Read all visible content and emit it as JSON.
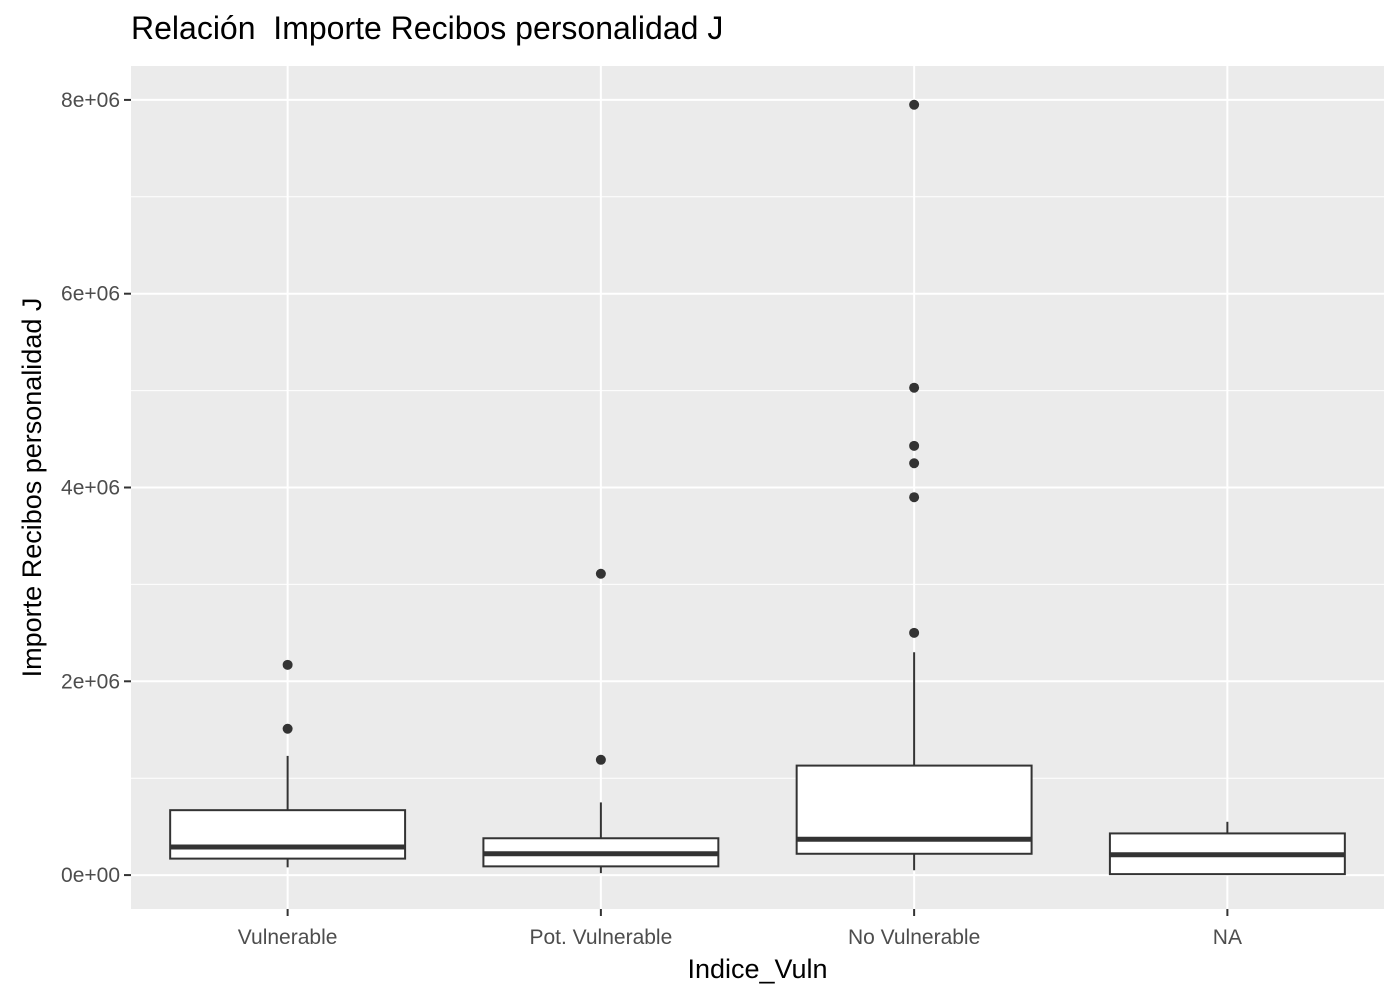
{
  "chart_data": {
    "type": "boxplot",
    "title": "Relación  Importe Recibos personalidad J",
    "xlabel": "Indice_Vuln",
    "ylabel": "Importe Recibos personalidad J",
    "categories": [
      "Vulnerable",
      "Pot. Vulnerable",
      "No Vulnerable",
      "NA"
    ],
    "ylim": [
      -350000,
      8350000
    ],
    "yticks": [
      {
        "value": 0,
        "label": "0e+00"
      },
      {
        "value": 2000000,
        "label": "2e+06"
      },
      {
        "value": 4000000,
        "label": "4e+06"
      },
      {
        "value": 6000000,
        "label": "6e+06"
      },
      {
        "value": 8000000,
        "label": "8e+06"
      }
    ],
    "grid": true,
    "background": "#ebebeb",
    "boxes": [
      {
        "category": "Vulnerable",
        "whisker_low": 80000,
        "q1": 170000,
        "median": 290000,
        "q3": 670000,
        "whisker_high": 1230000,
        "outliers": [
          1510000,
          2170000
        ]
      },
      {
        "category": "Pot. Vulnerable",
        "whisker_low": 20000,
        "q1": 90000,
        "median": 220000,
        "q3": 380000,
        "whisker_high": 750000,
        "outliers": [
          1190000,
          3110000
        ]
      },
      {
        "category": "No Vulnerable",
        "whisker_low": 50000,
        "q1": 220000,
        "median": 370000,
        "q3": 1130000,
        "whisker_high": 2300000,
        "outliers": [
          2500000,
          3900000,
          4250000,
          4430000,
          5030000,
          7950000
        ]
      },
      {
        "category": "NA",
        "whisker_low": 10000,
        "q1": 10000,
        "median": 210000,
        "q3": 430000,
        "whisker_high": 550000,
        "outliers": []
      }
    ]
  }
}
